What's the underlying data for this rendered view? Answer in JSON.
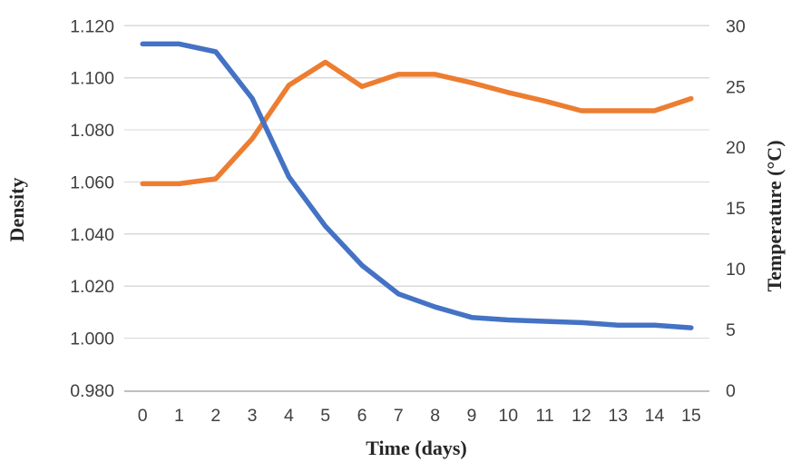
{
  "chart_data": {
    "type": "line",
    "title": "",
    "xlabel": "Time (days)",
    "grid": true,
    "legend": "none",
    "categories": [
      0,
      1,
      2,
      3,
      4,
      5,
      6,
      7,
      8,
      9,
      10,
      11,
      12,
      13,
      14,
      15
    ],
    "x_tick_labels": [
      "0",
      "1",
      "2",
      "3",
      "4",
      "5",
      "6",
      "7",
      "8",
      "9",
      "10",
      "11",
      "12",
      "13",
      "14",
      "15"
    ],
    "left_axis": {
      "label": "Density",
      "min": 0.98,
      "max": 1.12,
      "step": 0.02,
      "tick_labels": [
        "0.980",
        "1.000",
        "1.020",
        "1.040",
        "1.060",
        "1.080",
        "1.100",
        "1.120"
      ]
    },
    "right_axis": {
      "label": "Temperature (°C)",
      "min": 0,
      "max": 30,
      "step": 5,
      "tick_labels": [
        "0",
        "5",
        "10",
        "15",
        "20",
        "25",
        "30"
      ]
    },
    "series": [
      {
        "name": "Temperature",
        "axis": "right",
        "color": "#ED7D31",
        "values": [
          17,
          17,
          17.4,
          20.7,
          25.1,
          27,
          25,
          26,
          26,
          25.3,
          24.5,
          23.8,
          23,
          23,
          23,
          24
        ]
      },
      {
        "name": "Density",
        "axis": "left",
        "color": "#4472C4",
        "values": [
          1.113,
          1.113,
          1.11,
          1.092,
          1.062,
          1.043,
          1.028,
          1.017,
          1.012,
          1.008,
          1.007,
          1.0065,
          1.006,
          1.005,
          1.005,
          1.004
        ]
      }
    ],
    "colors": {
      "gridline": "#D9D9D9",
      "axis_line": "#BFBFBF",
      "tick_text": "#404040",
      "title_text": "#262626"
    }
  }
}
